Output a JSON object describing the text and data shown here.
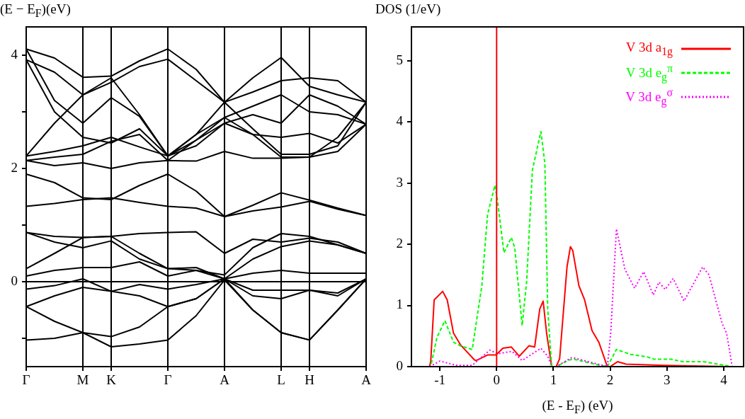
{
  "chart_data": [
    {
      "type": "line",
      "ylabel": "(E − E$_{F}$)(eV)",
      "categories": [
        "Γ",
        null,
        "M",
        "K",
        null,
        "Γ",
        null,
        "A",
        null,
        "L",
        "H",
        null,
        "A"
      ],
      "ylim": [
        -1.5,
        4.5
      ],
      "yticks": [
        {
          "value": -1,
          "label": null
        },
        0,
        {
          "value": 1,
          "label": null
        },
        2,
        {
          "value": 3,
          "label": null
        },
        4
      ],
      "grid": "x",
      "legend": false,
      "marker": "none",
      "ref_lines": [
        {
          "axis": "y",
          "value": 0,
          "color": "#000000"
        }
      ],
      "series": [
        {
          "color": "#000000",
          "values": [
            4.11,
            3.95,
            3.61,
            3.63,
            3.9,
            4.11,
            3.75,
            3.17,
            3.6,
            3.96,
            3.45,
            3.3,
            3.17
          ]
        },
        {
          "color": "#000000",
          "values": [
            3.92,
            3.7,
            3.3,
            3.52,
            3.8,
            3.93,
            3.55,
            3.17,
            3.35,
            3.55,
            3.6,
            3.55,
            3.17
          ]
        },
        {
          "color": "#000000",
          "values": [
            4.11,
            3.2,
            2.8,
            3.25,
            2.92,
            2.22,
            2.6,
            2.9,
            3.1,
            3.3,
            3.0,
            2.95,
            2.78
          ]
        },
        {
          "color": "#000000",
          "values": [
            3.92,
            3.0,
            2.55,
            2.45,
            2.7,
            2.22,
            2.5,
            2.8,
            2.95,
            2.8,
            3.3,
            3.1,
            2.78
          ]
        },
        {
          "color": "#000000",
          "values": [
            2.22,
            2.3,
            2.4,
            2.55,
            2.38,
            2.22,
            2.4,
            2.8,
            2.6,
            2.55,
            2.62,
            2.45,
            2.78
          ]
        },
        {
          "color": "#000000",
          "values": [
            2.14,
            2.2,
            2.25,
            2.48,
            2.6,
            2.14,
            2.5,
            2.9,
            2.6,
            2.2,
            2.2,
            2.3,
            2.78
          ]
        },
        {
          "color": "#000000",
          "values": [
            2.14,
            2.05,
            2.1,
            2.0,
            2.1,
            2.14,
            2.13,
            2.3,
            2.18,
            2.18,
            2.2,
            2.55,
            3.17
          ]
        },
        {
          "color": "#000000",
          "values": [
            2.22,
            2.8,
            3.3,
            3.6,
            2.95,
            2.22,
            2.6,
            3.17,
            2.7,
            2.25,
            2.25,
            2.4,
            3.17
          ]
        },
        {
          "color": "#000000",
          "values": [
            1.9,
            1.75,
            1.48,
            1.45,
            1.7,
            1.9,
            1.6,
            1.15,
            1.35,
            1.57,
            1.44,
            1.3,
            1.17
          ]
        },
        {
          "color": "#000000",
          "values": [
            1.33,
            1.38,
            1.45,
            1.48,
            1.4,
            1.33,
            1.3,
            1.15,
            1.25,
            1.32,
            1.42,
            1.28,
            1.17
          ]
        },
        {
          "color": "#000000",
          "values": [
            0.87,
            0.8,
            0.78,
            0.8,
            0.85,
            0.87,
            0.88,
            0.5,
            0.75,
            0.7,
            0.77,
            0.7,
            0.5
          ]
        },
        {
          "color": "#000000",
          "values": [
            0.87,
            0.7,
            0.6,
            0.72,
            0.4,
            0.23,
            0.25,
            0.05,
            0.4,
            0.62,
            0.72,
            0.65,
            0.5
          ]
        },
        {
          "color": "#000000",
          "values": [
            0.23,
            0.5,
            0.78,
            0.8,
            0.5,
            0.23,
            0.2,
            0.12,
            0.6,
            0.85,
            0.8,
            0.65,
            0.5
          ]
        },
        {
          "color": "#000000",
          "values": [
            0.1,
            0.2,
            0.25,
            0.25,
            0.35,
            0.1,
            0.2,
            0.05,
            0.15,
            0.2,
            0.15,
            0.15,
            0.15
          ]
        },
        {
          "color": "#000000",
          "values": [
            -0.13,
            -0.07,
            0.05,
            -0.17,
            -0.05,
            -0.13,
            -0.05,
            0.05,
            -0.15,
            -0.15,
            -0.15,
            -0.2,
            0.05
          ]
        },
        {
          "color": "#000000",
          "values": [
            -0.44,
            -0.25,
            -0.1,
            -0.17,
            -0.25,
            -0.44,
            -0.3,
            0.05,
            -0.25,
            -0.3,
            -0.15,
            -0.25,
            0.05
          ]
        },
        {
          "color": "#000000",
          "values": [
            -0.44,
            -0.7,
            -0.9,
            -0.97,
            -0.8,
            -0.44,
            -0.3,
            0.05,
            -0.5,
            -0.9,
            -1.03,
            -0.5,
            0.05
          ]
        },
        {
          "color": "#000000",
          "values": [
            -1.03,
            -1.0,
            -0.9,
            -1.15,
            -1.1,
            -1.03,
            -0.6,
            0.03,
            -0.5,
            -0.9,
            -1.03,
            -0.5,
            0.05
          ]
        }
      ]
    },
    {
      "type": "line",
      "ylabel": "DOS (1/eV)",
      "xlabel": "(E - E$_{F}$) (eV)",
      "xlim": [
        -1.5,
        4.35
      ],
      "xticks": [
        -1,
        0,
        1,
        2,
        3,
        4
      ],
      "ylim": [
        0,
        5.55
      ],
      "yticks": [
        0,
        1,
        2,
        3,
        4,
        5
      ],
      "legend": "top right",
      "marker": "none",
      "ref_lines": [
        {
          "axis": "x",
          "value": 0,
          "color": "#ff0000"
        }
      ],
      "series": [
        {
          "name": "V 3d a$_{1g}$",
          "color": "#ff0000",
          "line_style": "solid",
          "x": [
            -1.18,
            -1.16,
            -1.1,
            -0.95,
            -0.87,
            -0.76,
            -0.64,
            -0.39,
            -0.36,
            -0.16,
            -0.01,
            0.11,
            0.26,
            0.4,
            0.57,
            0.67,
            0.76,
            0.82,
            0.88,
            0.97,
            1.05,
            1.11,
            1.24,
            1.3,
            1.34,
            1.45,
            1.55,
            1.68,
            1.8,
            1.95,
            2.0,
            2.13,
            2.28,
            2.95,
            4.1
          ],
          "values": [
            0,
            0.09,
            1.09,
            1.23,
            1.09,
            0.55,
            0.36,
            0.11,
            0.1,
            0.19,
            0.19,
            0.3,
            0.32,
            0.17,
            0.34,
            0.32,
            0.94,
            1.07,
            0.55,
            0,
            0,
            0.13,
            1.63,
            1.96,
            1.9,
            1.32,
            1.09,
            0.59,
            0.4,
            0,
            0,
            0.08,
            0.04,
            0.02,
            0
          ]
        },
        {
          "name": "V 3d e$_{g}$$^{π}$",
          "color": "#00ff00",
          "line_style": "dashed",
          "x": [
            -1.15,
            -1.05,
            -0.91,
            -0.76,
            -0.64,
            -0.43,
            -0.26,
            -0.16,
            -0.03,
            0.01,
            0.13,
            0.26,
            0.32,
            0.45,
            0.53,
            0.63,
            0.78,
            0.85,
            0.9,
            0.97,
            1.05,
            1.28,
            1.36,
            1.78,
            1.95,
            2.11,
            2.36,
            2.65,
            2.78,
            3.08,
            3.28,
            3.65,
            4.15
          ],
          "values": [
            0.05,
            0.48,
            0.75,
            0.4,
            0.34,
            0.28,
            1.32,
            2.48,
            2.96,
            2.75,
            1.86,
            2.11,
            1.94,
            0.67,
            1.4,
            3.21,
            3.84,
            3.32,
            0.94,
            0,
            0,
            0.11,
            0.12,
            0.03,
            0,
            0.28,
            0.2,
            0.16,
            0.12,
            0.12,
            0.08,
            0.08,
            0
          ]
        },
        {
          "name": "V 3d e$_{g}$$^{σ}$",
          "color": "#ff00ff",
          "line_style": "dotted",
          "x": [
            -1.18,
            -1.0,
            -0.7,
            -0.43,
            -0.12,
            0.02,
            0.27,
            0.45,
            0.78,
            0.9,
            0.97,
            1.05,
            1.33,
            1.83,
            1.95,
            2.01,
            2.11,
            2.26,
            2.43,
            2.59,
            2.76,
            2.86,
            2.97,
            3.11,
            3.3,
            3.63,
            3.74,
            3.97,
            4.05,
            4.15
          ],
          "values": [
            0,
            0.09,
            0.02,
            0.02,
            0.27,
            0.21,
            0.25,
            0.1,
            0.3,
            0.17,
            0,
            0,
            0.15,
            0.03,
            0,
            0.55,
            2.25,
            1.59,
            1.28,
            1.55,
            1.17,
            1.38,
            1.26,
            1.44,
            1.07,
            1.63,
            1.5,
            0.71,
            0.55,
            0
          ]
        }
      ]
    }
  ]
}
